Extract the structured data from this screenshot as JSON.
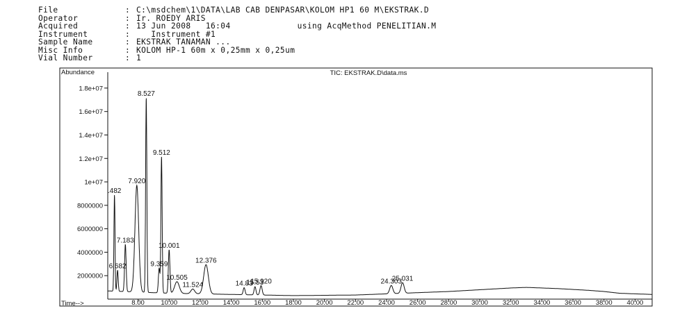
{
  "header": [
    {
      "key": "File",
      "sep": ":",
      "value": "C:\\msdchem\\1\\DATA\\LAB CAB DENPASAR\\KOLOM HP1 60 M\\EKSTRAK.D",
      "extra": ""
    },
    {
      "key": "Operator",
      "sep": ":",
      "value": "Ir. ROEDY ARIS",
      "extra": ""
    },
    {
      "key": "Acquired",
      "sep": ":",
      "value": "13 Jun 2008   16:04",
      "extra": "using AcqMethod PENELITIAN.M"
    },
    {
      "key": "Instrument",
      "sep": ":",
      "value": "   Instrument #1",
      "extra": ""
    },
    {
      "key": "Sample Name",
      "sep": ":",
      "value": "EKSTRAK TANAMAN ...",
      "extra": ""
    },
    {
      "key": "Misc Info",
      "sep": ":",
      "value": "KOLOM HP-1 60m x 0,25mm x 0,25um",
      "extra": ""
    },
    {
      "key": "Vial Number",
      "sep": ":",
      "value": "1",
      "extra": ""
    }
  ],
  "chart_data": {
    "type": "line",
    "title": "TIC: EKSTRAK.D\\data.ms",
    "ylabel": "Abundance",
    "xlabel": "Time-->",
    "xlim": [
      6.05,
      41.1
    ],
    "ylim": [
      0,
      19000000
    ],
    "x_ticks": [
      8,
      10,
      12,
      14,
      16,
      18,
      20,
      22,
      24,
      26,
      28,
      30,
      32,
      34,
      36,
      38,
      40
    ],
    "x_tick_labels": [
      "8.00",
      "10.00",
      "12.00",
      "14.00",
      "16.00",
      "18.00",
      "20.00",
      "22.00",
      "24.00",
      "26.00",
      "28.00",
      "30.00",
      "32.00",
      "34.00",
      "36.00",
      "38.00",
      "40.00"
    ],
    "y_ticks": [
      2000000,
      4000000,
      6000000,
      8000000,
      10000000,
      12000000,
      14000000,
      16000000,
      18000000
    ],
    "y_tick_labels": [
      "2000000",
      "4000000",
      "6000000",
      "8000000",
      "1e+07",
      "1.2e+07",
      "1.4e+07",
      "1.6e+07",
      "1.8e+07"
    ],
    "grid": false,
    "series": [
      {
        "peaks": [
          {
            "rt": 6.482,
            "height": 8200000,
            "width": 0.035,
            "label": ".482"
          },
          {
            "rt": 6.682,
            "height": 1800000,
            "width": 0.04,
            "label": "6.682"
          },
          {
            "rt": 7.183,
            "height": 4000000,
            "width": 0.05,
            "label": "7.183"
          },
          {
            "rt": 7.92,
            "height": 9100000,
            "width": 0.12,
            "label": "7.920"
          },
          {
            "rt": 8.527,
            "height": 16600000,
            "width": 0.04,
            "label": "8.527"
          },
          {
            "rt": 9.359,
            "height": 2100000,
            "width": 0.05,
            "label": "9.359"
          },
          {
            "rt": 9.512,
            "height": 11600000,
            "width": 0.04,
            "label": "9.512"
          },
          {
            "rt": 10.001,
            "height": 3700000,
            "width": 0.05,
            "label": "10.001"
          },
          {
            "rt": 10.505,
            "height": 1000000,
            "width": 0.15,
            "label": "10.505"
          },
          {
            "rt": 11.524,
            "height": 400000,
            "width": 0.12,
            "label": "11.524"
          },
          {
            "rt": 12.376,
            "height": 2500000,
            "width": 0.15,
            "label": "12.376"
          },
          {
            "rt": 14.83,
            "height": 600000,
            "width": 0.06,
            "label": "14.83"
          },
          {
            "rt": 15.53,
            "height": 700000,
            "width": 0.06,
            "label": "15.53"
          },
          {
            "rt": 15.92,
            "height": 800000,
            "width": 0.07,
            "label": "15.920"
          },
          {
            "rt": 24.303,
            "height": 700000,
            "width": 0.1,
            "label": "24.303"
          },
          {
            "rt": 25.031,
            "height": 900000,
            "width": 0.1,
            "label": "25.031"
          }
        ],
        "baseline": [
          [
            6.05,
            700000
          ],
          [
            10,
            500000
          ],
          [
            14,
            400000
          ],
          [
            18,
            300000
          ],
          [
            22,
            350000
          ],
          [
            24,
            450000
          ],
          [
            26,
            550000
          ],
          [
            28,
            650000
          ],
          [
            30,
            800000
          ],
          [
            32,
            950000
          ],
          [
            33,
            1000000
          ],
          [
            35,
            900000
          ],
          [
            37,
            750000
          ],
          [
            38,
            650000
          ],
          [
            39,
            500000
          ],
          [
            40,
            450000
          ],
          [
            41.1,
            400000
          ]
        ]
      }
    ]
  }
}
